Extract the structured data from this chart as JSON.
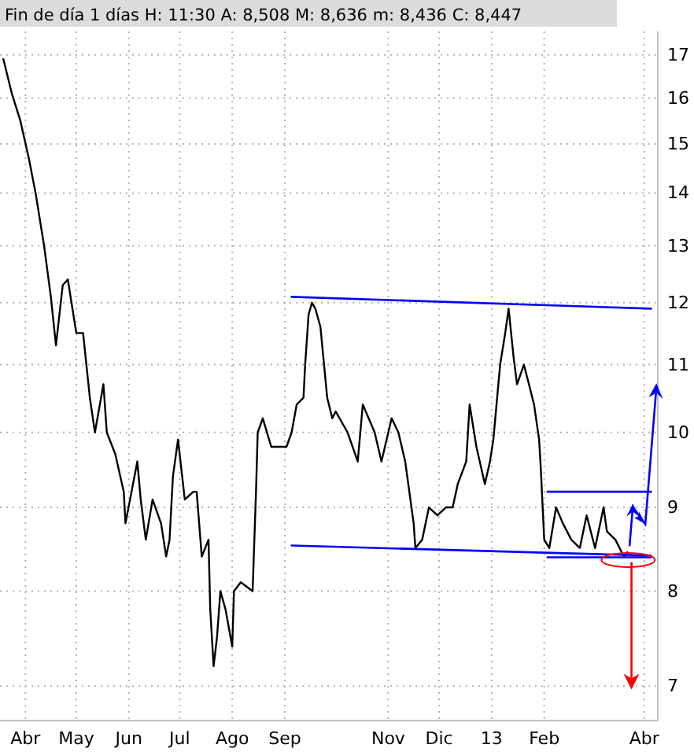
{
  "chart_data": {
    "type": "line",
    "title": "Fin de día 1 días  H: 11:30  A: 8,508  M: 8,636  m: 8,436  C: 8,447",
    "log": "y",
    "grid": true,
    "xlim": [
      "2012-03-17",
      "2013-04-09"
    ],
    "ylim": [
      6.67,
      17.57
    ],
    "xticks": [
      {
        "value": "2012-04",
        "label": "Abr"
      },
      {
        "value": "2012-05",
        "label": "May"
      },
      {
        "value": "2012-06",
        "label": "Jun"
      },
      {
        "value": "2012-07",
        "label": "Jul"
      },
      {
        "value": "2012-08",
        "label": "Ago"
      },
      {
        "value": "2012-09",
        "label": "Sep"
      },
      {
        "value": "2012-11",
        "label": "Nov"
      },
      {
        "value": "2012-12",
        "label": "Dic"
      },
      {
        "value": "2013-01",
        "label": "13"
      },
      {
        "value": "2013-02",
        "label": "Feb"
      },
      {
        "value": "2013-04",
        "label": "Abr"
      }
    ],
    "yticks": [
      7,
      8,
      9,
      10,
      11,
      12,
      13,
      14,
      15,
      16,
      17
    ],
    "series": [
      {
        "color": "#000000",
        "x": [
          "2012-03-19",
          "2012-03-24",
          "2012-03-29",
          "2012-04-03",
          "2012-04-07",
          "2012-04-12",
          "2012-04-16",
          "2012-04-19",
          "2012-04-23",
          "2012-04-26",
          "2012-05-01",
          "2012-05-05",
          "2012-05-09",
          "2012-05-12",
          "2012-05-17",
          "2012-05-19",
          "2012-05-24",
          "2012-05-29",
          "2012-05-30",
          "2012-06-06",
          "2012-06-08",
          "2012-06-11",
          "2012-06-15",
          "2012-06-20",
          "2012-06-23",
          "2012-06-25",
          "2012-06-27",
          "2012-06-30",
          "2012-07-04",
          "2012-07-09",
          "2012-07-11",
          "2012-07-14",
          "2012-07-18",
          "2012-07-19",
          "2012-07-21",
          "2012-07-23",
          "2012-07-25",
          "2012-07-28",
          "2012-08-01",
          "2012-08-02",
          "2012-08-06",
          "2012-08-13",
          "2012-08-15",
          "2012-08-16",
          "2012-08-19",
          "2012-08-24",
          "2012-08-29",
          "2012-09-02",
          "2012-09-05",
          "2012-09-08",
          "2012-09-12",
          "2012-09-13",
          "2012-09-15",
          "2012-09-17",
          "2012-09-19",
          "2012-09-22",
          "2012-09-26",
          "2012-09-29",
          "2012-10-01",
          "2012-10-08",
          "2012-10-14",
          "2012-10-17",
          "2012-10-24",
          "2012-10-28",
          "2012-11-03",
          "2012-11-07",
          "2012-11-11",
          "2012-11-16",
          "2012-11-17",
          "2012-11-21",
          "2012-11-25",
          "2012-11-30",
          "2012-12-05",
          "2012-12-09",
          "2012-12-12",
          "2012-12-17",
          "2012-12-19",
          "2012-12-23",
          "2012-12-28",
          "2012-12-31",
          "2013-01-02",
          "2013-01-06",
          "2013-01-09",
          "2013-01-11",
          "2013-01-14",
          "2013-01-16",
          "2013-01-20",
          "2013-01-23",
          "2013-01-26",
          "2013-01-29",
          "2013-01-30",
          "2013-02-01",
          "2013-02-04",
          "2013-02-08",
          "2013-02-12",
          "2013-02-17",
          "2013-02-22",
          "2013-02-26",
          "2013-03-03",
          "2013-03-08",
          "2013-03-10",
          "2013-03-15",
          "2013-03-20",
          "2013-03-22"
        ],
        "values": [
          16.9,
          16.1,
          15.5,
          14.7,
          14.0,
          13.0,
          12.1,
          11.3,
          12.3,
          12.4,
          11.5,
          11.5,
          10.5,
          10.0,
          10.7,
          10.0,
          9.7,
          9.2,
          8.8,
          9.6,
          9.1,
          8.6,
          9.1,
          8.8,
          8.4,
          8.6,
          9.4,
          9.9,
          9.1,
          9.2,
          9.2,
          8.4,
          8.6,
          7.8,
          7.2,
          7.5,
          8.0,
          7.8,
          7.4,
          8.0,
          8.1,
          8.0,
          9.2,
          10.0,
          10.2,
          9.8,
          9.8,
          9.8,
          10.0,
          10.4,
          10.5,
          11.0,
          11.8,
          12.0,
          11.9,
          11.6,
          10.5,
          10.2,
          10.3,
          10.0,
          9.6,
          10.4,
          10.0,
          9.6,
          10.2,
          10.0,
          9.6,
          8.8,
          8.5,
          8.6,
          9.0,
          8.9,
          9.0,
          9.0,
          9.3,
          9.6,
          10.4,
          9.8,
          9.3,
          9.6,
          9.9,
          11.0,
          11.5,
          11.9,
          11.1,
          10.7,
          11.0,
          10.7,
          10.4,
          9.9,
          9.5,
          8.6,
          8.5,
          9.0,
          8.8,
          8.6,
          8.5,
          8.9,
          8.5,
          9.0,
          8.7,
          8.6,
          8.4,
          8.45
        ]
      },
      {
        "type": "line",
        "color": "#0000ff",
        "x": [
          "2012-09-05",
          "2013-04-05"
        ],
        "values": [
          12.1,
          11.9
        ]
      },
      {
        "type": "line",
        "color": "#0000ff",
        "x": [
          "2012-09-05",
          "2013-04-05"
        ],
        "values": [
          8.53,
          8.41
        ]
      },
      {
        "type": "line",
        "color": "#0000ff",
        "x": [
          "2013-02-03",
          "2013-04-05"
        ],
        "values": [
          9.2,
          9.2
        ]
      },
      {
        "type": "line",
        "color": "#0000ff",
        "x": [
          "2013-02-03",
          "2013-04-05"
        ],
        "values": [
          8.39,
          8.39
        ]
      }
    ]
  }
}
